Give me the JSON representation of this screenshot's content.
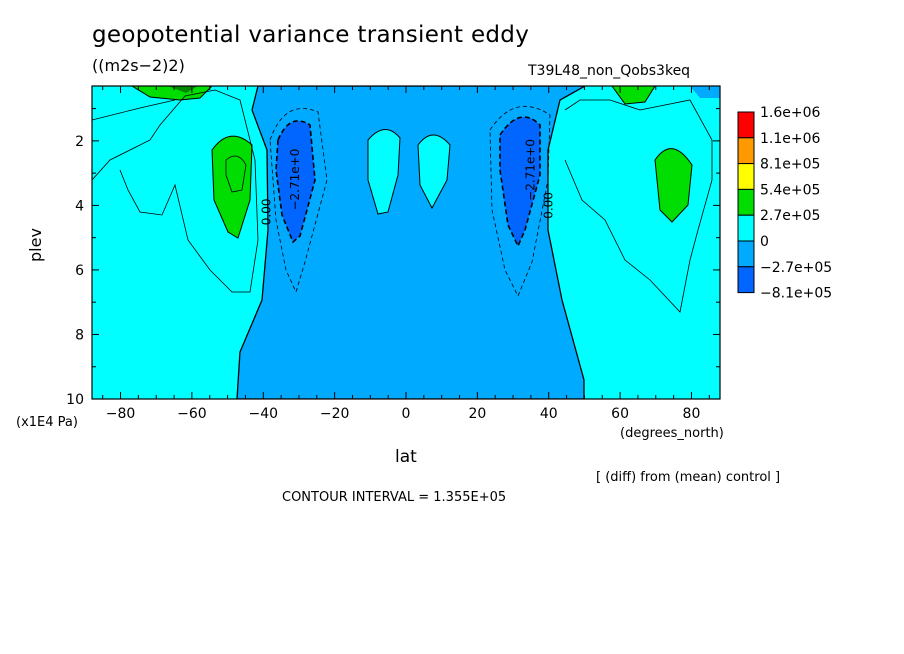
{
  "chart_data": {
    "type": "contour",
    "title": "geopotential variance transient eddy",
    "units": "((m2s−2)2)",
    "run_label": "T39L48_non_Qobs3keq",
    "xlabel": "lat",
    "xunits": "(degrees_north)",
    "ylabel": "plev",
    "yunits": "(x1E4 Pa)",
    "note": "[ (diff) from (mean) control ]",
    "contour_interval": "CONTOUR INTERVAL = 1.355E+05",
    "xlim": [
      -88,
      88
    ],
    "ylim": [
      10,
      0.3
    ],
    "x_ticks": [
      -80,
      -60,
      -40,
      -20,
      0,
      20,
      40,
      60,
      80
    ],
    "y_ticks": [
      2,
      4,
      6,
      8,
      10
    ],
    "contour_labels": [
      {
        "text": "0.00",
        "lat": -38,
        "plev": 4.2
      },
      {
        "text": "−2.71e+0",
        "lat": -30,
        "plev": 3.2
      },
      {
        "text": "−2.71e+0",
        "lat": 36,
        "plev": 2.9
      },
      {
        "text": "0.00",
        "lat": 41,
        "plev": 4.0
      }
    ],
    "legend": {
      "levels": [
        "1.6e+06",
        "1.1e+06",
        "8.1e+05",
        "5.4e+05",
        "2.7e+05",
        "0",
        "−2.7e+05",
        "−8.1e+05"
      ],
      "colors": [
        "#ff0000",
        "#ff9900",
        "#ffff00",
        "#00dd00",
        "#00ffff",
        "#00aaff",
        "#0066ff"
      ]
    },
    "colors": {
      "background_fill": "#00ffff",
      "negative_fill": "#00aaff",
      "strong_negative_fill": "#0066ff",
      "positive_fill": "#00dd00"
    }
  }
}
